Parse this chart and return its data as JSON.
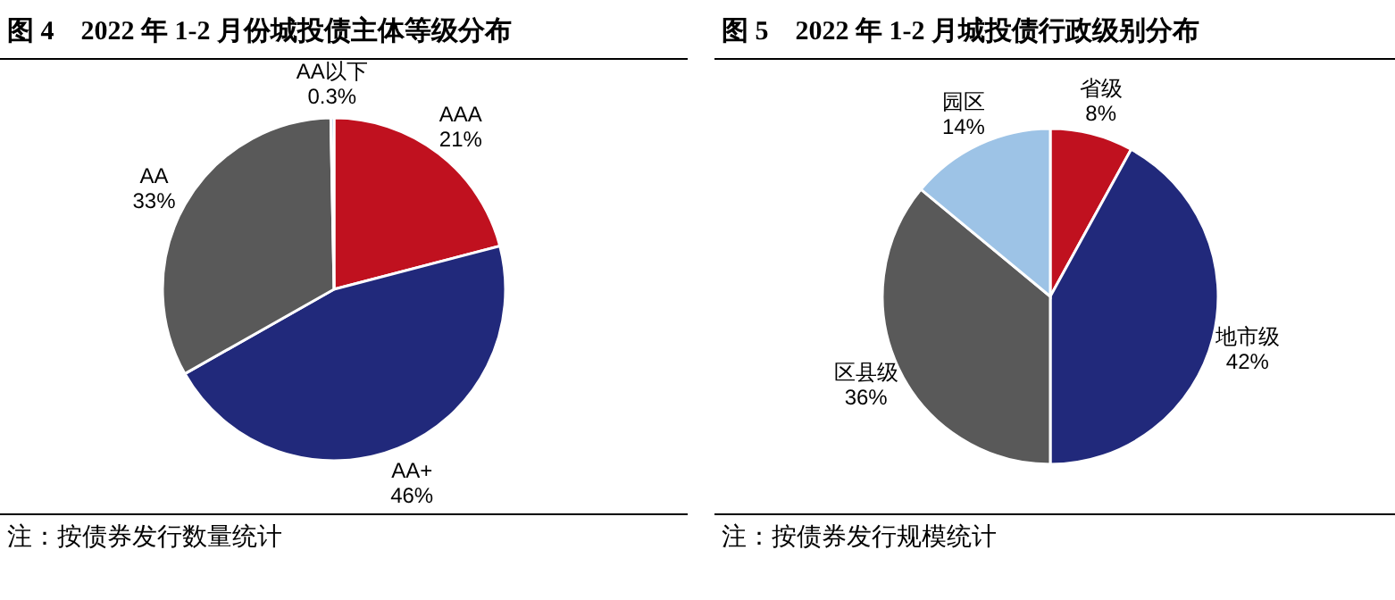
{
  "chart_data": [
    {
      "type": "pie",
      "title": "图 4　2022 年 1-2 月份城投债主体等级分布",
      "categories": [
        "AAA",
        "AA+",
        "AA",
        "AA以下"
      ],
      "values": [
        21,
        46,
        33,
        0.3
      ],
      "value_labels": [
        "21%",
        "46%",
        "33%",
        "0.3%"
      ],
      "colors": [
        "#c0111f",
        "#21297b",
        "#595959",
        "#9dc3e6"
      ],
      "legend": false,
      "annotations": [
        "注：按债券发行数量统计"
      ]
    },
    {
      "type": "pie",
      "title": "图 5　2022 年 1-2 月城投债行政级别分布",
      "categories": [
        "省级",
        "地市级",
        "区县级",
        "园区"
      ],
      "values": [
        8,
        42,
        36,
        14
      ],
      "value_labels": [
        "8%",
        "42%",
        "36%",
        "14%"
      ],
      "colors": [
        "#c0111f",
        "#21297b",
        "#595959",
        "#9dc3e6"
      ],
      "legend": false,
      "annotations": [
        "注：按债券发行规模统计"
      ]
    }
  ]
}
